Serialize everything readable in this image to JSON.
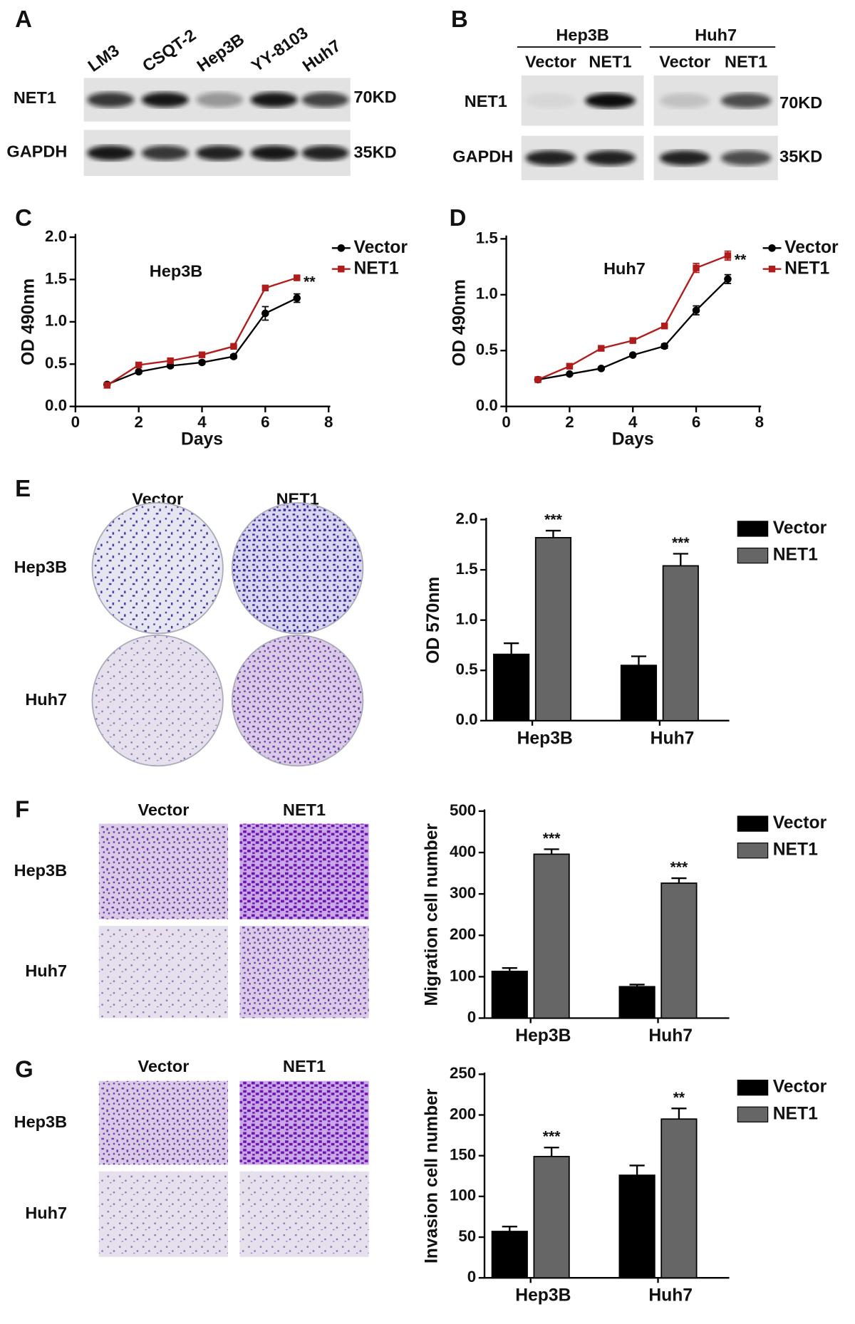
{
  "figure": {
    "panel_labels": [
      "A",
      "B",
      "C",
      "D",
      "E",
      "F",
      "G"
    ],
    "blot_a": {
      "lanes": [
        "LM3",
        "CSQT-2",
        "Hep3B",
        "YY-8103",
        "Huh7"
      ],
      "rows": [
        "NET1",
        "GAPDH"
      ],
      "sizes": [
        "70KD",
        "35KD"
      ]
    },
    "blot_b": {
      "groups": [
        "Hep3B",
        "Huh7"
      ],
      "lanes": [
        "Vector",
        "NET1",
        "Vector",
        "NET1"
      ],
      "rows": [
        "NET1",
        "GAPDH"
      ],
      "sizes": [
        "70KD",
        "35KD"
      ]
    },
    "images": [
      {
        "columns": [
          "Vector",
          "NET1"
        ],
        "rows": [
          "Hep3B",
          "Huh7"
        ]
      },
      {
        "columns": [
          "Vector",
          "NET1"
        ],
        "rows": [
          "Hep3B",
          "Huh7"
        ]
      },
      {
        "columns": [
          "Vector",
          "NET1"
        ],
        "rows": [
          "Hep3B",
          "Huh7"
        ]
      }
    ]
  },
  "chart_data": [
    {
      "type": "line",
      "title": "Hep3B",
      "x_label": "Days",
      "y_label": "OD 490nm",
      "x": [
        1,
        2,
        3,
        4,
        5,
        6,
        7
      ],
      "series": [
        {
          "name": "Vector",
          "color": "#000000",
          "values": [
            0.26,
            0.41,
            0.48,
            0.52,
            0.59,
            1.1,
            1.28
          ],
          "errors": [
            0.02,
            0.02,
            0.02,
            0.02,
            0.02,
            0.08,
            0.05
          ]
        },
        {
          "name": "NET1",
          "color": "#b01c1c",
          "values": [
            0.25,
            0.49,
            0.54,
            0.61,
            0.71,
            1.4,
            1.52
          ],
          "errors": [
            0.01,
            0.01,
            0.01,
            0.01,
            0.01,
            0.02,
            0.02
          ],
          "annotation": "**"
        }
      ],
      "xlim": [
        0,
        8
      ],
      "xticks": [
        0,
        2,
        4,
        6,
        8
      ],
      "ylim": [
        0,
        2
      ],
      "yticks": [
        {
          "value": 0,
          "label": "0.0"
        },
        {
          "value": 0.5,
          "label": "0.5"
        },
        {
          "value": 1,
          "label": "1.0"
        },
        {
          "value": 1.5,
          "label": "1.5"
        },
        {
          "value": 2,
          "label": "2.0"
        }
      ]
    },
    {
      "type": "line",
      "title": "Huh7",
      "x_label": "Days",
      "y_label": "OD 490nm",
      "x": [
        1,
        2,
        3,
        4,
        5,
        6,
        7
      ],
      "series": [
        {
          "name": "Vector",
          "color": "#000000",
          "values": [
            0.24,
            0.29,
            0.34,
            0.46,
            0.54,
            0.86,
            1.14
          ],
          "errors": [
            0.01,
            0.01,
            0.01,
            0.01,
            0.02,
            0.04,
            0.04
          ]
        },
        {
          "name": "NET1",
          "color": "#b01c1c",
          "values": [
            0.24,
            0.36,
            0.52,
            0.59,
            0.72,
            1.24,
            1.35
          ],
          "errors": [
            0.01,
            0.01,
            0.01,
            0.01,
            0.01,
            0.04,
            0.04
          ],
          "annotation": "**"
        }
      ],
      "xlim": [
        0,
        8
      ],
      "xticks": [
        0,
        2,
        4,
        6,
        8
      ],
      "ylim": [
        0,
        1.5
      ],
      "yticks": [
        {
          "value": 0,
          "label": "0.0"
        },
        {
          "value": 0.5,
          "label": "0.5"
        },
        {
          "value": 1,
          "label": "1.0"
        },
        {
          "value": 1.5,
          "label": "1.5"
        }
      ]
    },
    {
      "type": "bar",
      "y_label": "OD 570nm",
      "categories": [
        "Hep3B",
        "Huh7"
      ],
      "series": [
        {
          "name": "Vector",
          "color": "#000000",
          "values": [
            0.66,
            0.55
          ],
          "errors": [
            0.11,
            0.09
          ]
        },
        {
          "name": "NET1",
          "color": "#666666",
          "values": [
            1.82,
            1.54
          ],
          "errors": [
            0.07,
            0.12
          ],
          "annotations": [
            "***",
            "***"
          ]
        }
      ],
      "ylim": [
        0,
        2
      ],
      "yticks": [
        {
          "value": 0,
          "label": "0.0"
        },
        {
          "value": 0.5,
          "label": "0.5"
        },
        {
          "value": 1,
          "label": "1.0"
        },
        {
          "value": 1.5,
          "label": "1.5"
        },
        {
          "value": 2,
          "label": "2.0"
        }
      ]
    },
    {
      "type": "bar",
      "y_label": "Migration cell number",
      "categories": [
        "Hep3B",
        "Huh7"
      ],
      "series": [
        {
          "name": "Vector",
          "color": "#000000",
          "values": [
            113,
            76
          ],
          "errors": [
            8,
            5
          ]
        },
        {
          "name": "NET1",
          "color": "#666666",
          "values": [
            396,
            326
          ],
          "errors": [
            12,
            12
          ],
          "annotations": [
            "***",
            "***"
          ]
        }
      ],
      "ylim": [
        0,
        500
      ],
      "yticks": [
        0,
        100,
        200,
        300,
        400,
        500
      ]
    },
    {
      "type": "bar",
      "y_label": "Invasion cell number",
      "categories": [
        "Hep3B",
        "Huh7"
      ],
      "series": [
        {
          "name": "Vector",
          "color": "#000000",
          "values": [
            57,
            126
          ],
          "errors": [
            6,
            12
          ]
        },
        {
          "name": "NET1",
          "color": "#666666",
          "values": [
            149,
            195
          ],
          "errors": [
            11,
            13
          ],
          "annotations": [
            "***",
            "**"
          ]
        }
      ],
      "ylim": [
        0,
        250
      ],
      "yticks": [
        0,
        50,
        100,
        150,
        200,
        250
      ]
    }
  ]
}
